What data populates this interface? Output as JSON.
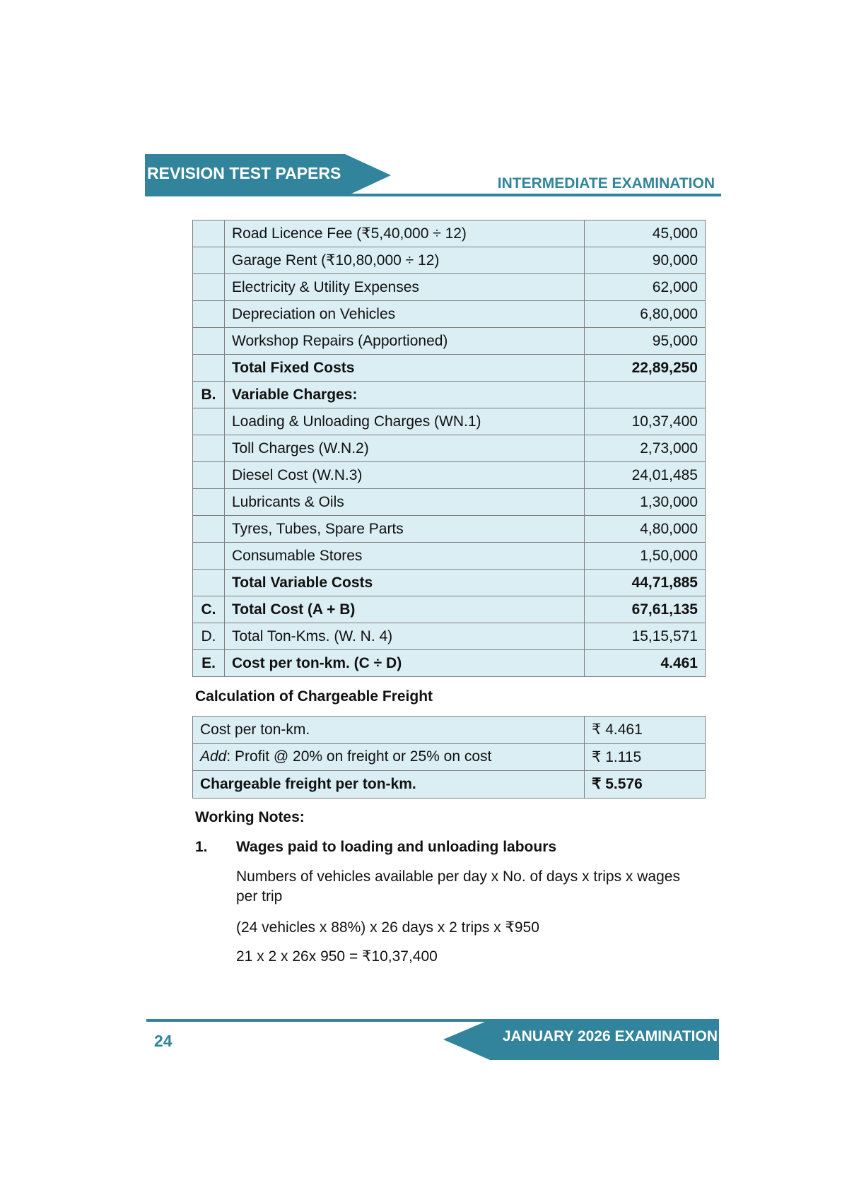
{
  "header": {
    "left_title": "REVISION TEST PAPERS",
    "right_title": "INTERMEDIATE EXAMINATION",
    "accent": "#31849b"
  },
  "cost_table": {
    "rows": [
      {
        "label": "",
        "item": "Road Licence Fee (₹5,40,000 ÷ 12)",
        "amount": "45,000",
        "bold": false
      },
      {
        "label": "",
        "item": "Garage Rent (₹10,80,000 ÷ 12)",
        "amount": "90,000",
        "bold": false
      },
      {
        "label": "",
        "item": "Electricity & Utility Expenses",
        "amount": "62,000",
        "bold": false
      },
      {
        "label": "",
        "item": "Depreciation on Vehicles",
        "amount": "6,80,000",
        "bold": false
      },
      {
        "label": "",
        "item": "Workshop Repairs (Apportioned)",
        "amount": "95,000",
        "bold": false
      },
      {
        "label": "",
        "item": "Total Fixed Costs",
        "amount": "22,89,250",
        "bold": true
      },
      {
        "label": "B.",
        "item": "Variable Charges:",
        "amount": "",
        "bold": true
      },
      {
        "label": "",
        "item": "Loading & Unloading Charges (WN.1)",
        "amount": "10,37,400",
        "bold": false
      },
      {
        "label": "",
        "item": "Toll Charges (W.N.2)",
        "amount": "2,73,000",
        "bold": false
      },
      {
        "label": "",
        "item": "Diesel Cost (W.N.3)",
        "amount": "24,01,485",
        "bold": false
      },
      {
        "label": "",
        "item": "Lubricants & Oils",
        "amount": "1,30,000",
        "bold": false
      },
      {
        "label": "",
        "item": "Tyres, Tubes, Spare Parts",
        "amount": "4,80,000",
        "bold": false
      },
      {
        "label": "",
        "item": "Consumable Stores",
        "amount": "1,50,000",
        "bold": false
      },
      {
        "label": "",
        "item": "Total Variable Costs",
        "amount": "44,71,885",
        "bold": true
      },
      {
        "label": "C.",
        "item": "Total Cost (A + B)",
        "amount": "67,61,135",
        "bold": true
      },
      {
        "label": "D.",
        "item": "Total Ton-Kms. (W. N. 4)",
        "amount": "15,15,571",
        "bold": false
      },
      {
        "label": "E.",
        "item": "Cost per ton-km. (C ÷ D)",
        "amount": "4.461",
        "bold": true
      }
    ]
  },
  "freight": {
    "heading": "Calculation of Chargeable Freight",
    "rows": [
      {
        "item": "Cost per ton-km.",
        "amount": "₹ 4.461"
      },
      {
        "item_em": "Add",
        "item": ": Profit @ 20% on freight or 25% on cost",
        "amount": "₹ 1.115"
      },
      {
        "item": "Chargeable freight per ton-km.",
        "amount": "₹ 5.576"
      }
    ]
  },
  "notes": {
    "heading": "Working Notes:",
    "number": "1.",
    "title": "Wages paid to loading and unloading labours",
    "line1": "Numbers of vehicles available per day x No. of days x trips x wages",
    "line1b": "per trip",
    "line2": "(24 vehicles x 88%) x 26 days x 2 trips x ₹950",
    "line3": "21 x 2 x 26x 950 = ₹10,37,400"
  },
  "footer": {
    "page_number": "24",
    "title": "JANUARY 2026 EXAMINATION"
  }
}
